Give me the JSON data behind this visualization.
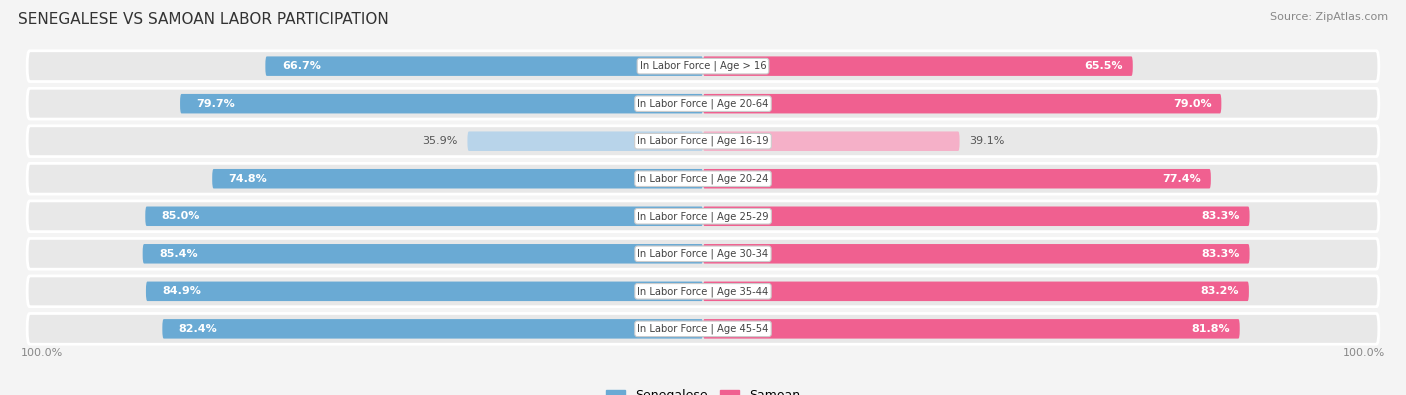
{
  "title": "SENEGALESE VS SAMOAN LABOR PARTICIPATION",
  "source": "Source: ZipAtlas.com",
  "categories": [
    "In Labor Force | Age > 16",
    "In Labor Force | Age 20-64",
    "In Labor Force | Age 16-19",
    "In Labor Force | Age 20-24",
    "In Labor Force | Age 25-29",
    "In Labor Force | Age 30-34",
    "In Labor Force | Age 35-44",
    "In Labor Force | Age 45-54"
  ],
  "senegalese": [
    66.7,
    79.7,
    35.9,
    74.8,
    85.0,
    85.4,
    84.9,
    82.4
  ],
  "samoan": [
    65.5,
    79.0,
    39.1,
    77.4,
    83.3,
    83.3,
    83.2,
    81.8
  ],
  "blue_dark": "#6aaad4",
  "blue_light": "#b8d4ea",
  "pink_dark": "#f06090",
  "pink_light": "#f5b0c8",
  "row_bg": "#e8e8e8",
  "fig_bg": "#f4f4f4"
}
